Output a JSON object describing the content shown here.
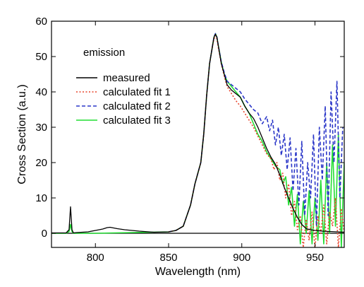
{
  "chart_data": {
    "type": "line",
    "annotation": "emission",
    "xlabel": "Wavelength (nm)",
    "ylabel": "Cross Section (a.u.)",
    "xlim": [
      770,
      970
    ],
    "ylim": [
      -4,
      60
    ],
    "xticks": [
      800,
      850,
      900,
      950
    ],
    "yticks": [
      0,
      10,
      20,
      30,
      40,
      50,
      60
    ],
    "grid": false,
    "legend_position": "upper-left",
    "series": [
      {
        "name": "measured",
        "color": "#000000",
        "dash": "solid",
        "x": [
          770,
          780,
          782,
          783,
          784,
          785,
          787,
          795,
          800,
          805,
          808,
          810,
          815,
          820,
          830,
          840,
          850,
          855,
          860,
          865,
          868,
          870,
          872,
          874,
          876,
          878,
          880,
          881,
          882,
          883,
          884,
          886,
          888,
          890,
          893,
          896,
          899,
          902,
          905,
          908,
          911,
          914,
          917,
          920,
          923,
          926,
          929,
          932,
          935,
          938,
          941,
          944,
          947,
          950,
          955,
          960,
          965,
          970
        ],
        "y": [
          0.1,
          0.1,
          1,
          7.5,
          1,
          0.1,
          0.2,
          0.4,
          0.8,
          1.2,
          1.6,
          1.7,
          1.3,
          1,
          0.6,
          0.3,
          0.4,
          0.8,
          2,
          8,
          14,
          17,
          20,
          28,
          39,
          48,
          53,
          55.5,
          56.3,
          55.5,
          53,
          48,
          45,
          42,
          40.5,
          39.5,
          38.5,
          36,
          34,
          32.5,
          30,
          27,
          24,
          21.5,
          19.5,
          16.5,
          13,
          10,
          7,
          4.5,
          2.5,
          1.3,
          1,
          0.8,
          0.6,
          0.5,
          0.4,
          0.3
        ]
      },
      {
        "name": "calculated fit 1",
        "color": "#e8432a",
        "dash": "dotted",
        "x": [
          850,
          855,
          860,
          865,
          868,
          870,
          872,
          874,
          876,
          878,
          880,
          881,
          882,
          883,
          884,
          886,
          888,
          890,
          893,
          896,
          899,
          902,
          905,
          908,
          911,
          914,
          917,
          920,
          922,
          924,
          926,
          928,
          930,
          932,
          934,
          936,
          938,
          940,
          942,
          944,
          946,
          948,
          950,
          952,
          954,
          956,
          958,
          960,
          962,
          964,
          966,
          968,
          970
        ],
        "y": [
          0.4,
          0.8,
          2,
          8,
          14,
          17,
          20,
          28,
          39,
          48,
          53,
          55,
          56,
          55,
          52.5,
          48,
          44.5,
          41.5,
          39.5,
          37.5,
          36,
          34,
          32,
          30,
          27.5,
          25,
          22.5,
          21,
          18,
          20,
          15,
          17,
          10,
          14,
          5,
          9,
          1,
          5,
          -4,
          4,
          -2,
          6,
          -4,
          5,
          0,
          8,
          -3,
          6,
          2,
          10,
          -4,
          7,
          0
        ]
      },
      {
        "name": "calculated fit 2",
        "color": "#2a36c8",
        "dash": "dashed",
        "x": [
          850,
          855,
          860,
          865,
          868,
          870,
          872,
          874,
          876,
          878,
          880,
          881,
          882,
          883,
          884,
          886,
          888,
          890,
          893,
          896,
          899,
          902,
          905,
          908,
          911,
          914,
          917,
          919,
          921,
          923,
          925,
          927,
          929,
          931,
          933,
          935,
          937,
          939,
          941,
          943,
          945,
          947,
          949,
          951,
          953,
          955,
          957,
          959,
          961,
          963,
          965,
          967,
          969
        ],
        "y": [
          0.4,
          0.8,
          2,
          8,
          14,
          17,
          20,
          28,
          39,
          48,
          53,
          55.5,
          56.5,
          55.5,
          53,
          48.5,
          45.5,
          43,
          42,
          41,
          40,
          38,
          36.5,
          35,
          34,
          31,
          33,
          29,
          32,
          25,
          30,
          22,
          28,
          18,
          27,
          12,
          24,
          8,
          26,
          5,
          20,
          10,
          28,
          2,
          30,
          15,
          36,
          5,
          40,
          20,
          43,
          10,
          30
        ]
      },
      {
        "name": "calculated fit 3",
        "color": "#22dd33",
        "dash": "solid",
        "x": [
          770,
          780,
          782,
          783,
          784,
          785,
          787,
          800,
          850,
          855,
          860,
          865,
          868,
          870,
          872,
          874,
          876,
          878,
          880,
          881,
          882,
          883,
          884,
          886,
          888,
          890,
          893,
          896,
          899,
          902,
          905,
          908,
          911,
          914,
          917,
          920,
          923,
          926,
          928,
          930,
          932,
          934,
          936,
          938,
          940,
          942,
          944,
          946,
          948,
          950,
          952,
          954,
          956,
          958,
          960,
          962,
          964,
          966,
          968,
          970
        ],
        "y": [
          0,
          0,
          0.5,
          2.5,
          0.5,
          0,
          0,
          0,
          0.4,
          0.8,
          2,
          8,
          14,
          17,
          20,
          28,
          39,
          48,
          53,
          55.5,
          56.5,
          55.5,
          53,
          48.5,
          45,
          43,
          41.5,
          40,
          38.5,
          36,
          34,
          31,
          28,
          26,
          23,
          21,
          19,
          18,
          14,
          16,
          8,
          13,
          2,
          11,
          -3,
          9,
          0,
          12,
          -3,
          10,
          -2,
          15,
          -3,
          20,
          0,
          25,
          2,
          28,
          -4,
          20
        ]
      }
    ]
  }
}
